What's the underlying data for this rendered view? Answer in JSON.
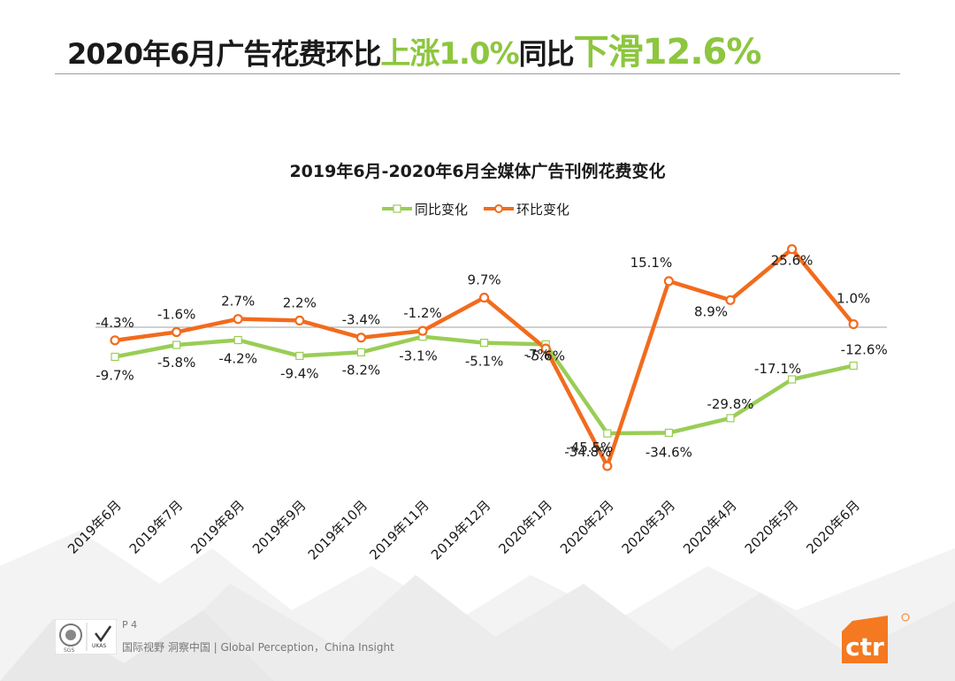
{
  "header": {
    "title_prefix": "2020年6月广告花费环比",
    "title_up": "上涨1.0%",
    "title_mid": "同比",
    "title_down": "下滑12.6%"
  },
  "footer": {
    "page": "P 4",
    "tagline": "国际视野  洞察中国 |  Global Perception，China Insight",
    "logo_text": "ctr",
    "cert_sgs": "SGS",
    "cert_ukas": "UKAS"
  },
  "colors": {
    "yoy": "#9acd56",
    "mom": "#f26b1d",
    "title_accent": "#8dc63f",
    "brand": "#f47920"
  },
  "chart_data": {
    "type": "line",
    "title": "2019年6月-2020年6月全媒体广告刊例花费变化",
    "categories": [
      "2019年6月",
      "2019年7月",
      "2019年8月",
      "2019年9月",
      "2019年10月",
      "2019年11月",
      "2019年12月",
      "2020年1月",
      "2020年2月",
      "2020年3月",
      "2020年4月",
      "2020年5月",
      "2020年6月"
    ],
    "series": [
      {
        "name": "同比变化",
        "color": "#9acd56",
        "marker": "square",
        "values": [
          -9.7,
          -5.8,
          -4.2,
          -9.4,
          -8.2,
          -3.1,
          -5.1,
          -5.6,
          -34.8,
          -34.6,
          -29.8,
          -17.1,
          -12.6
        ],
        "labels": [
          "-9.7%",
          "-5.8%",
          "-4.2%",
          "-9.4%",
          "-8.2%",
          "-3.1%",
          "-5.1%",
          "-5.6%",
          "-34.8%",
          "-34.6%",
          "-29.8%",
          "-17.1%",
          "-12.6%"
        ]
      },
      {
        "name": "环比变化",
        "color": "#f26b1d",
        "marker": "circle",
        "values": [
          -4.3,
          -1.6,
          2.7,
          2.2,
          -3.4,
          -1.2,
          9.7,
          -7,
          -45.5,
          15.1,
          8.9,
          25.6,
          1.0
        ],
        "labels": [
          "-4.3%",
          "-1.6%",
          "2.7%",
          "2.2%",
          "-3.4%",
          "-1.2%",
          "9.7%",
          "-7%",
          "-45.5%",
          "15.1%",
          "8.9%",
          "25.6%",
          "1.0%"
        ]
      }
    ],
    "legend_position": "top-center",
    "grid": false
  }
}
